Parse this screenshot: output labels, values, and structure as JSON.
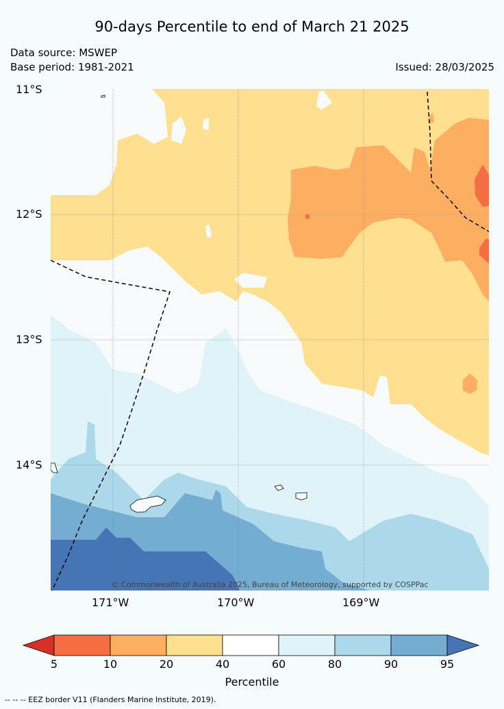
{
  "title": "90-days Percentile to end of March 21 2025",
  "data_source": "Data source: MSWEP",
  "base_period": "Base period: 1981-2021",
  "issued": "Issued: 28/03/2025",
  "lat_labels": [
    "11°S",
    "12°S",
    "13°S",
    "14°S"
  ],
  "lon_labels": [
    "171°W",
    "170°W",
    "169°W"
  ],
  "copyright": "© Commonwealth of Australia 2025, Bureau of Meteorology, supported by COSPPac",
  "colorbar": {
    "title": "Percentile",
    "ticks": [
      "5",
      "10",
      "20",
      "40",
      "60",
      "80",
      "90",
      "95"
    ],
    "colors": [
      "#d73027",
      "#f46d43",
      "#fdae61",
      "#fee090",
      "#ffffff",
      "#e0f3f8",
      "#abd9e9",
      "#74add1",
      "#4575b4"
    ]
  },
  "footnote": "--  --  -- EEZ border V11 (Flanders Marine Institute, 2019)."
}
